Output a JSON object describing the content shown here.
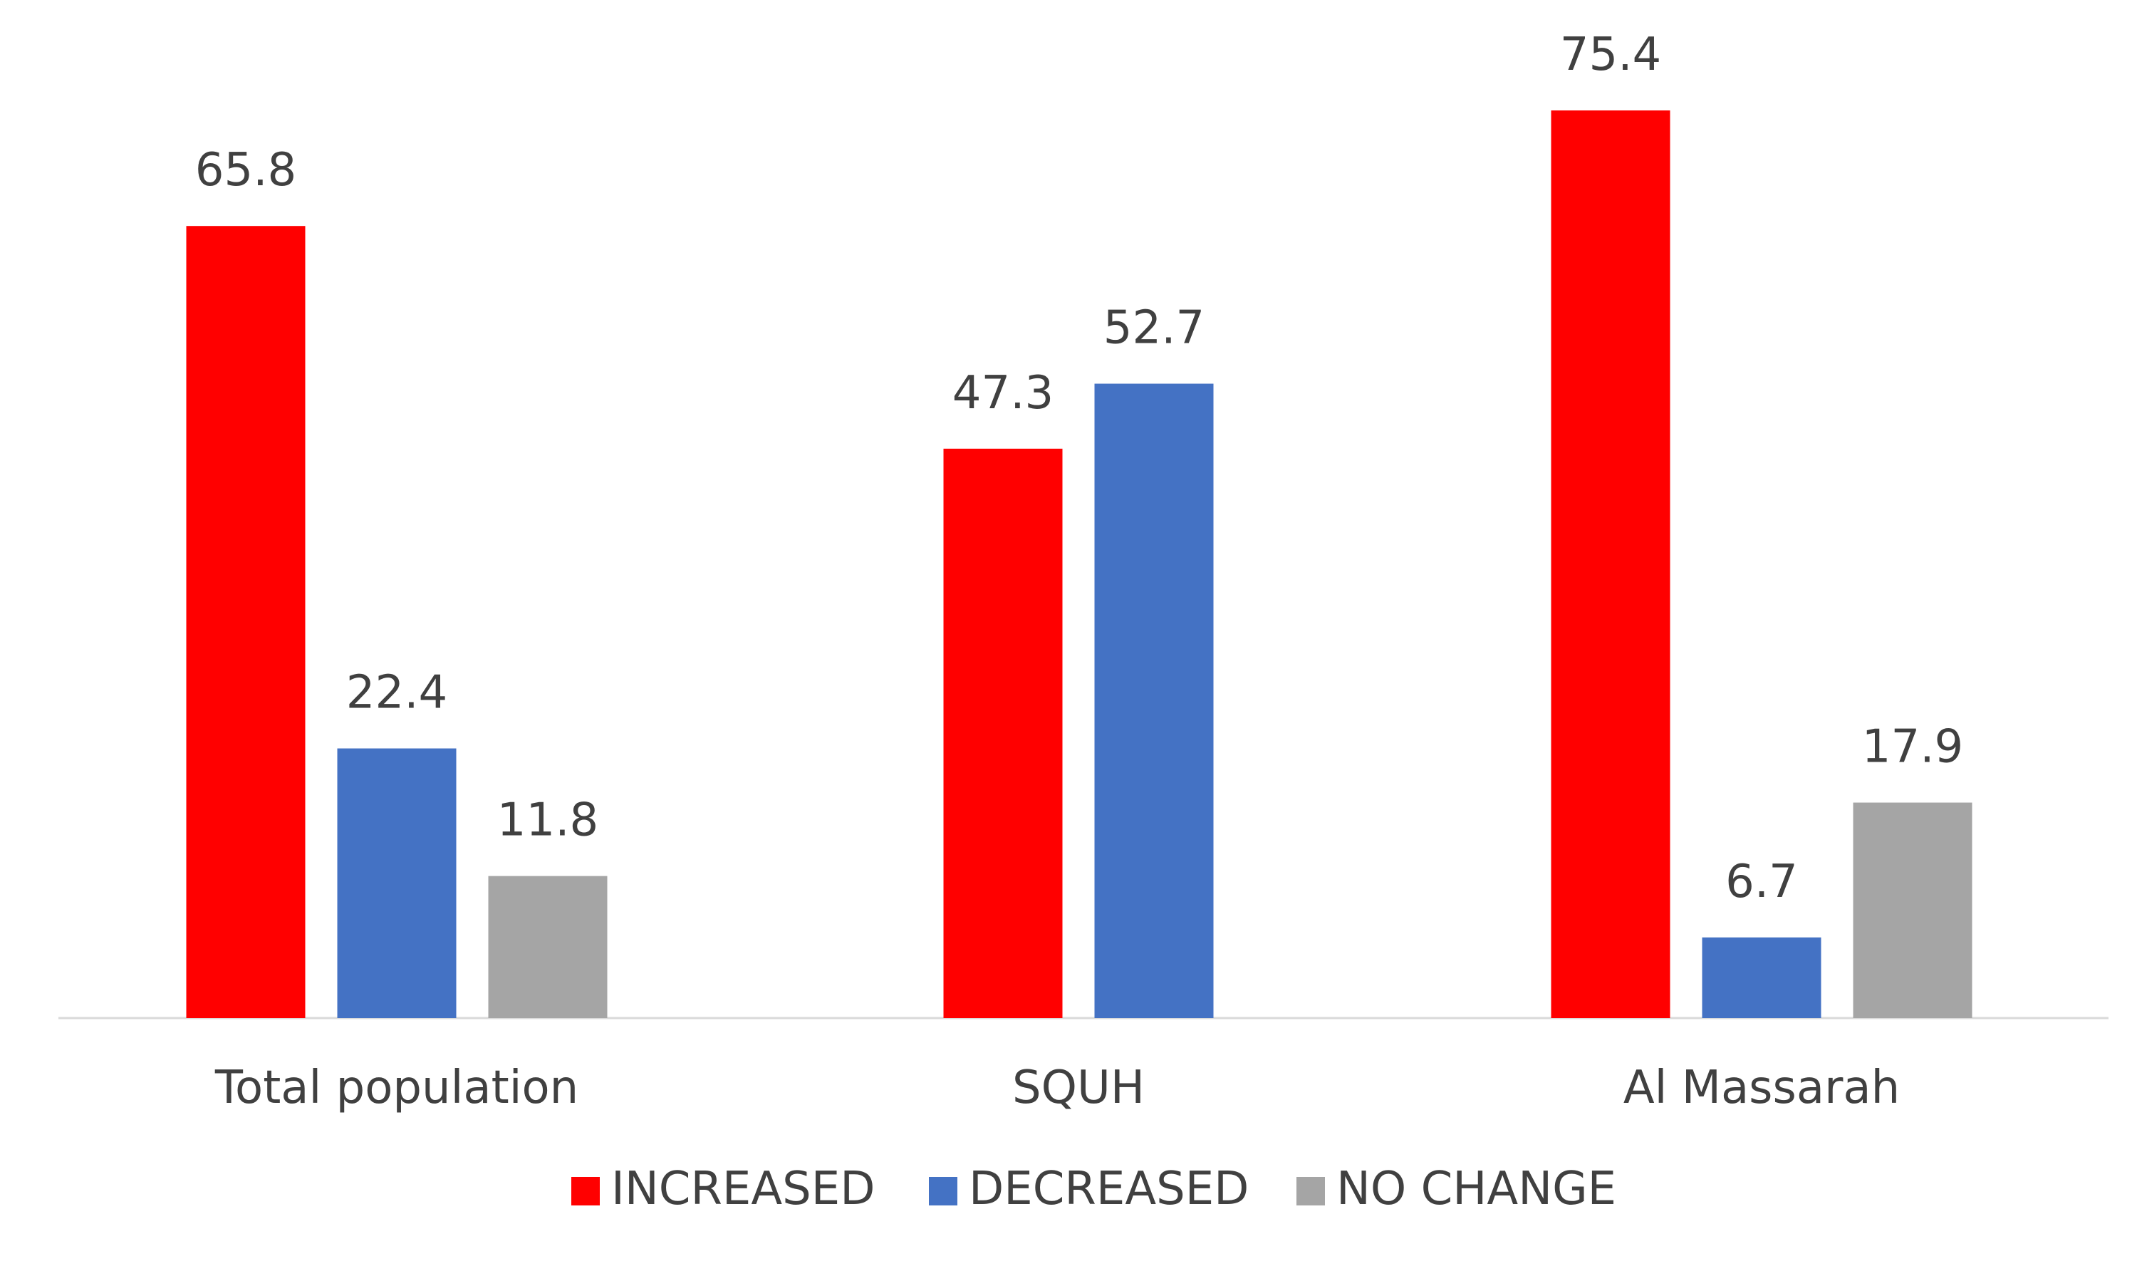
{
  "chart_data": {
    "type": "bar",
    "title": "",
    "xlabel": "",
    "ylabel": "",
    "categories": [
      "Total population",
      "SQUH",
      "Al Massarah"
    ],
    "series": [
      {
        "name": "INCREASED",
        "color": "#ff0000",
        "values": [
          65.8,
          47.3,
          75.4
        ]
      },
      {
        "name": "DECREASED",
        "color": "#4472c4",
        "values": [
          22.4,
          52.7,
          6.7
        ]
      },
      {
        "name": "NO CHANGE",
        "color": "#a5a5a5",
        "values": [
          11.8,
          null,
          17.9
        ]
      }
    ],
    "data_labels": [
      [
        "65.8",
        "47.3",
        "75.4"
      ],
      [
        "22.4",
        "52.7",
        "6.7"
      ],
      [
        "11.8",
        "",
        "17.9"
      ]
    ],
    "ylim": [
      0,
      75.4
    ],
    "grid": false,
    "legend_position": "bottom",
    "axis_color": "#d9d9d9",
    "label_color": "#404040"
  }
}
